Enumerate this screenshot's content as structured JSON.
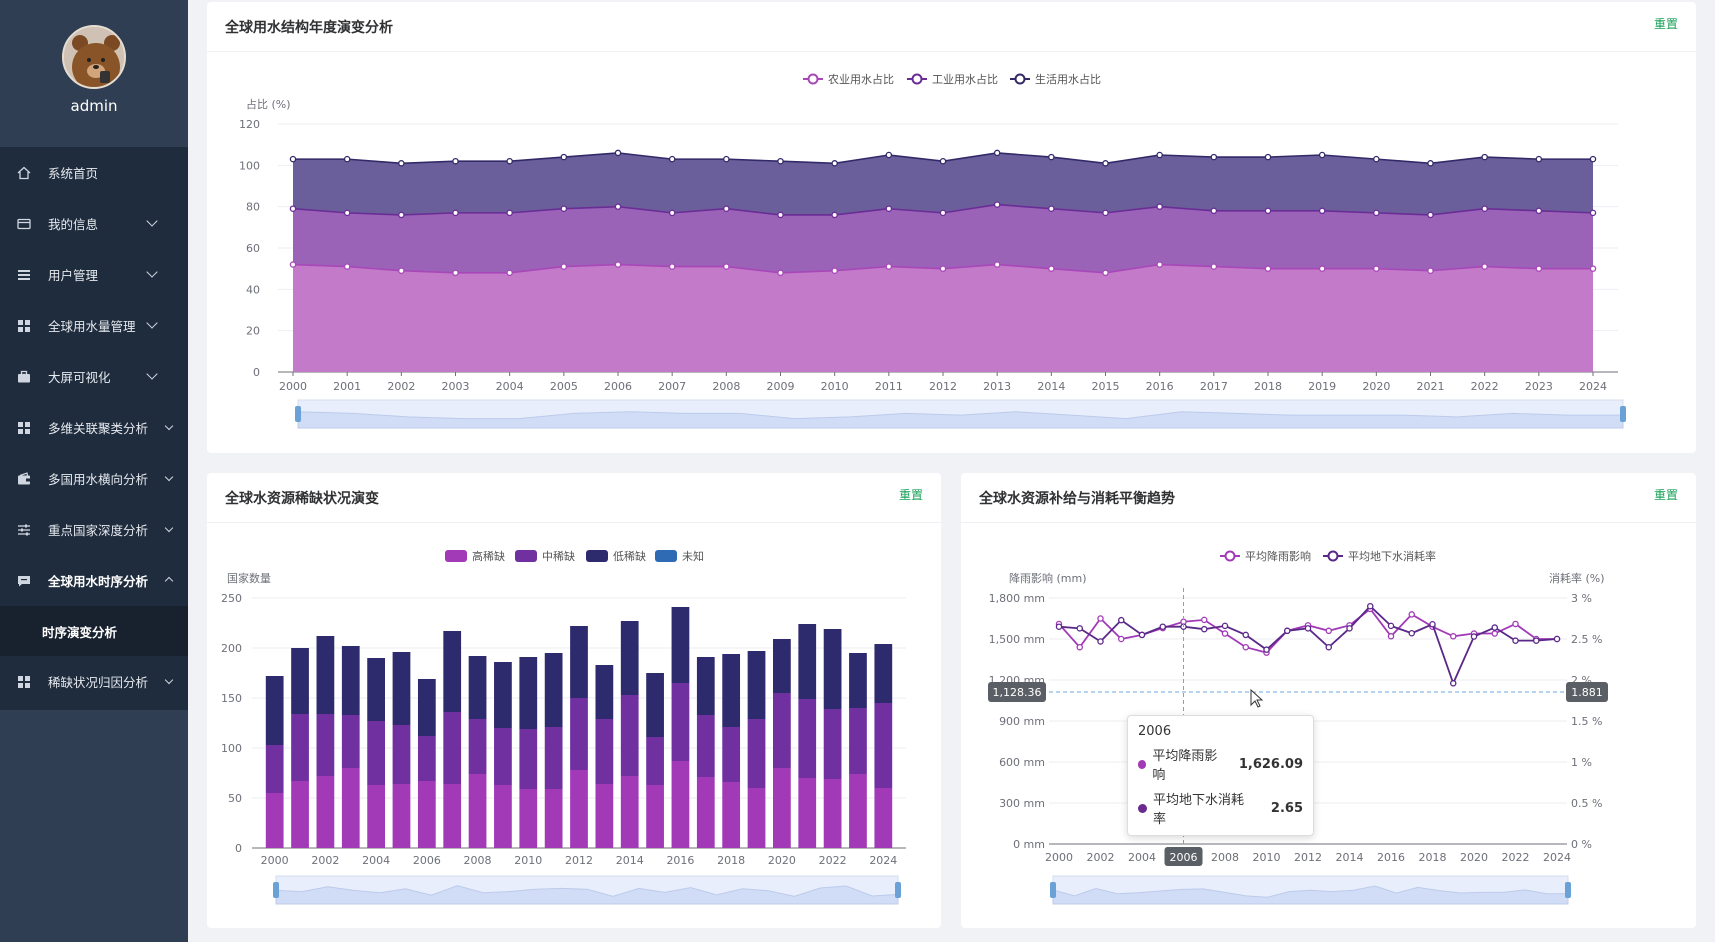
{
  "user": {
    "name": "admin"
  },
  "sidebar": {
    "items": [
      {
        "label": "系统首页",
        "icon": "home-icon",
        "chevron": "none"
      },
      {
        "label": "我的信息",
        "icon": "card-icon",
        "chevron": "down"
      },
      {
        "label": "用户管理",
        "icon": "list-icon",
        "chevron": "down"
      },
      {
        "label": "全球用水量管理",
        "icon": "grid-icon",
        "chevron": "down"
      },
      {
        "label": "大屏可视化",
        "icon": "briefcase-icon",
        "chevron": "down"
      },
      {
        "label": "多维关联聚类分析",
        "icon": "grid-icon",
        "chevron": "down"
      },
      {
        "label": "多国用水横向分析",
        "icon": "wallet-icon",
        "chevron": "down"
      },
      {
        "label": "重点国家深度分析",
        "icon": "sliders-icon",
        "chevron": "down"
      },
      {
        "label": "全球用水时序分析",
        "icon": "chat-icon",
        "chevron": "up"
      },
      {
        "label": "稀缺状况归因分析",
        "icon": "grid-icon",
        "chevron": "down"
      }
    ],
    "sub_item": "时序演变分析"
  },
  "colors": {
    "agri": "#b75cc6",
    "ind": "#7a3a9e",
    "dom": "#3a2f6e",
    "high": "#a23ab8",
    "mid": "#7030a0",
    "low": "#2e2a6e",
    "unknown": "#2f6ab4",
    "accent": "#18a058"
  },
  "card1": {
    "title": "全球用水结构年度演变分析",
    "reset": "重置"
  },
  "card2": {
    "title": "全球水资源稀缺状况演变",
    "reset": "重置"
  },
  "card3": {
    "title": "全球水资源补给与消耗平衡趋势",
    "reset": "重置"
  },
  "tooltip": {
    "year": "2006",
    "rows": [
      {
        "name": "平均降雨影响",
        "value": "1,626.09",
        "color": "#a23ab8"
      },
      {
        "name": "平均地下水消耗率",
        "value": "2.65",
        "color": "#6a2a90"
      }
    ]
  },
  "crosshair": {
    "left_value": "1,128.36",
    "right_value": "1.881",
    "year": "2006"
  },
  "chart_data": [
    {
      "type": "area",
      "stacked": true,
      "ylabel": "占比 (%)",
      "ylim": [
        0,
        120
      ],
      "yticks": [
        0,
        20,
        40,
        60,
        80,
        100,
        120
      ],
      "x": [
        "2000",
        "2001",
        "2002",
        "2003",
        "2004",
        "2005",
        "2006",
        "2007",
        "2008",
        "2009",
        "2010",
        "2011",
        "2012",
        "2013",
        "2014",
        "2015",
        "2016",
        "2017",
        "2018",
        "2019",
        "2020",
        "2021",
        "2022",
        "2023",
        "2024"
      ],
      "legend": "top-center",
      "series": [
        {
          "name": "农业用水占比",
          "values": [
            52,
            51,
            49,
            48,
            48,
            51,
            52,
            51,
            51,
            48,
            49,
            51,
            50,
            52,
            50,
            48,
            52,
            51,
            50,
            50,
            50,
            49,
            51,
            50,
            50
          ]
        },
        {
          "name": "工业用水占比",
          "values": [
            27,
            26,
            27,
            29,
            29,
            28,
            28,
            26,
            28,
            28,
            27,
            28,
            27,
            29,
            29,
            29,
            28,
            27,
            28,
            28,
            27,
            27,
            28,
            28,
            27
          ]
        },
        {
          "name": "生活用水占比",
          "values": [
            24,
            26,
            25,
            25,
            25,
            25,
            26,
            26,
            24,
            26,
            25,
            26,
            25,
            25,
            25,
            24,
            25,
            26,
            26,
            27,
            26,
            25,
            25,
            25,
            26
          ]
        }
      ]
    },
    {
      "type": "bar",
      "stacked": true,
      "ylabel": "国家数量",
      "ylim": [
        0,
        250
      ],
      "yticks": [
        0,
        50,
        100,
        150,
        200,
        250
      ],
      "x": [
        "2000",
        "2001",
        "2002",
        "2003",
        "2004",
        "2005",
        "2006",
        "2007",
        "2008",
        "2009",
        "2010",
        "2011",
        "2012",
        "2013",
        "2014",
        "2015",
        "2016",
        "2017",
        "2018",
        "2019",
        "2020",
        "2021",
        "2022",
        "2023",
        "2024"
      ],
      "xticks_shown": [
        "2000",
        "2002",
        "2004",
        "2006",
        "2008",
        "2010",
        "2012",
        "2014",
        "2016",
        "2018",
        "2020",
        "2022",
        "2024"
      ],
      "legend": "top-center",
      "series": [
        {
          "name": "高稀缺",
          "values": [
            55,
            67,
            72,
            80,
            63,
            64,
            67,
            64,
            74,
            63,
            59,
            59,
            78,
            64,
            72,
            63,
            87,
            71,
            66,
            60,
            80,
            70,
            69,
            74,
            60
          ]
        },
        {
          "name": "中稀缺",
          "values": [
            48,
            67,
            62,
            53,
            64,
            59,
            45,
            72,
            55,
            57,
            60,
            62,
            72,
            65,
            81,
            48,
            78,
            62,
            55,
            69,
            75,
            79,
            70,
            66,
            85
          ]
        },
        {
          "name": "低稀缺",
          "values": [
            69,
            66,
            78,
            69,
            63,
            73,
            57,
            81,
            63,
            66,
            72,
            74,
            72,
            54,
            74,
            64,
            76,
            58,
            73,
            68,
            54,
            75,
            80,
            55,
            59
          ]
        },
        {
          "name": "未知",
          "values": [
            0,
            0,
            0,
            0,
            0,
            0,
            0,
            0,
            0,
            0,
            0,
            0,
            0,
            0,
            0,
            0,
            0,
            0,
            0,
            0,
            0,
            0,
            0,
            0,
            0
          ]
        }
      ]
    },
    {
      "type": "line",
      "ylabel": "降雨影响 (mm)",
      "y2label": "消耗率 (%)",
      "ylim": [
        0,
        1800
      ],
      "y2lim": [
        0,
        3
      ],
      "yticks": [
        "0 mm",
        "300 mm",
        "600 mm",
        "900 mm",
        "1,200 mm",
        "1,500 mm",
        "1,800 mm"
      ],
      "y2ticks": [
        "0 %",
        "0.5 %",
        "1 %",
        "1.5 %",
        "2 %",
        "2.5 %",
        "3 %"
      ],
      "x": [
        "2000",
        "2001",
        "2002",
        "2003",
        "2004",
        "2005",
        "2006",
        "2007",
        "2008",
        "2009",
        "2010",
        "2011",
        "2012",
        "2013",
        "2014",
        "2015",
        "2016",
        "2017",
        "2018",
        "2019",
        "2020",
        "2021",
        "2022",
        "2023",
        "2024"
      ],
      "xticks_shown": [
        "2000",
        "2002",
        "2004",
        "2006",
        "2008",
        "2010",
        "2012",
        "2014",
        "2016",
        "2018",
        "2020",
        "2022",
        "2024"
      ],
      "legend": "top-center",
      "series": [
        {
          "name": "平均降雨影响",
          "axis": "left",
          "values": [
            1610,
            1440,
            1650,
            1500,
            1530,
            1580,
            1626,
            1640,
            1540,
            1440,
            1400,
            1560,
            1600,
            1560,
            1600,
            1720,
            1520,
            1680,
            1590,
            1520,
            1540,
            1540,
            1610,
            1500,
            1500
          ]
        },
        {
          "name": "平均地下水消耗率",
          "axis": "right",
          "values": [
            2.65,
            2.63,
            2.47,
            2.73,
            2.55,
            2.65,
            2.65,
            2.62,
            2.66,
            2.55,
            2.37,
            2.6,
            2.63,
            2.4,
            2.63,
            2.9,
            2.66,
            2.57,
            2.68,
            1.96,
            2.53,
            2.64,
            2.48,
            2.48,
            2.5
          ]
        }
      ]
    }
  ]
}
